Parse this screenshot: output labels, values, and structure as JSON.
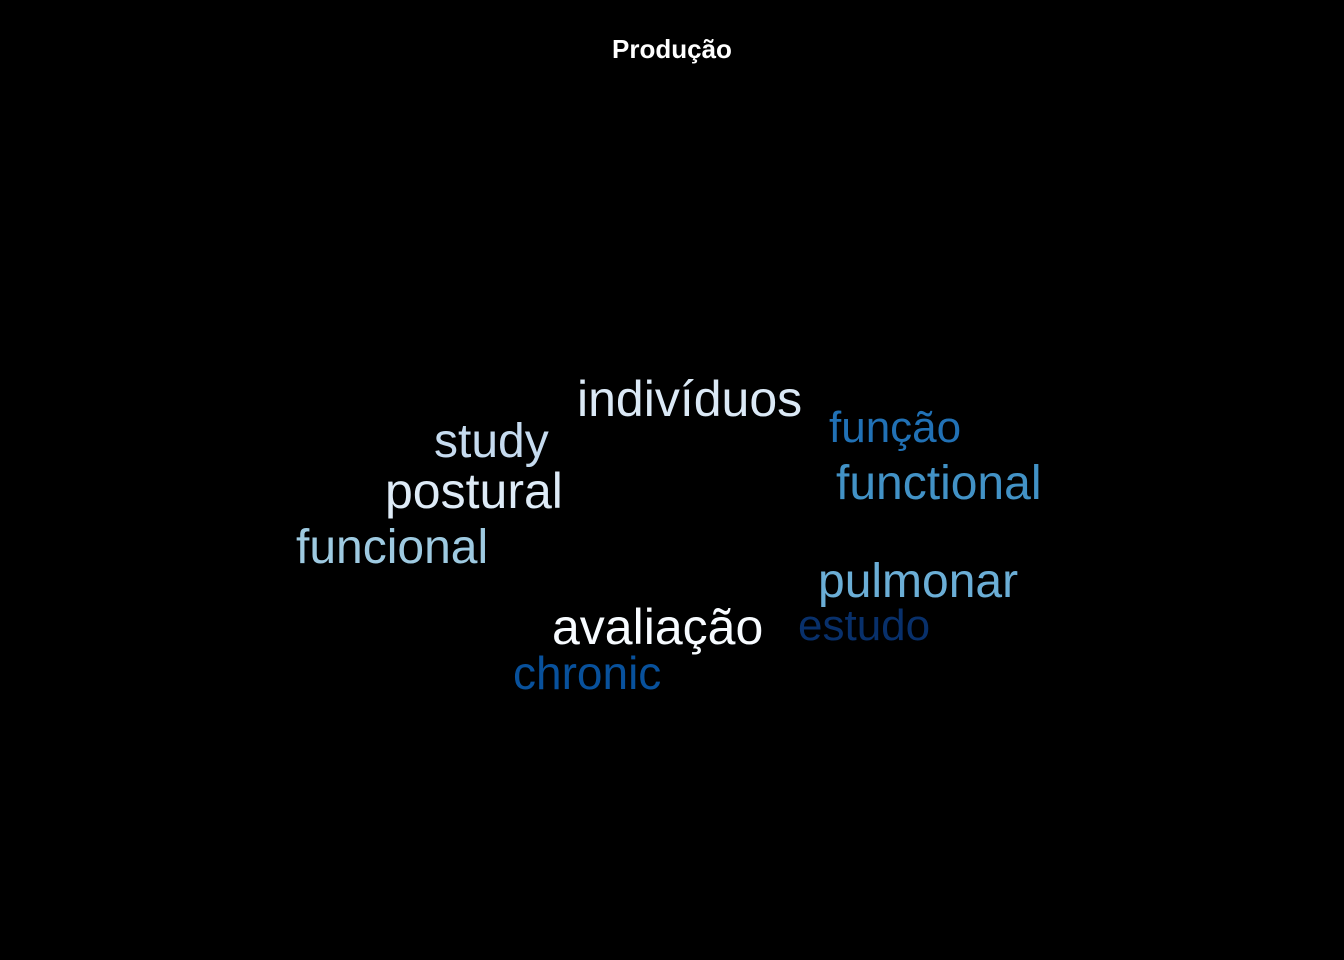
{
  "chart_data": {
    "type": "wordcloud",
    "title": "Produção",
    "words": [
      {
        "text": "avaliação",
        "weight": 10,
        "color": "#f7fbff"
      },
      {
        "text": "indivíduos",
        "weight": 9,
        "color": "#dbe9f6"
      },
      {
        "text": "study",
        "weight": 8,
        "color": "#c6dbef"
      },
      {
        "text": "postural",
        "weight": 9,
        "color": "#deebf7"
      },
      {
        "text": "funcional",
        "weight": 8,
        "color": "#9ecae1"
      },
      {
        "text": "pulmonar",
        "weight": 8,
        "color": "#6baed6"
      },
      {
        "text": "functional",
        "weight": 8,
        "color": "#4292c6"
      },
      {
        "text": "função",
        "weight": 7,
        "color": "#2171b5"
      },
      {
        "text": "chronic",
        "weight": 7,
        "color": "#08519c"
      },
      {
        "text": "estudo",
        "weight": 7,
        "color": "#08306b"
      }
    ]
  }
}
